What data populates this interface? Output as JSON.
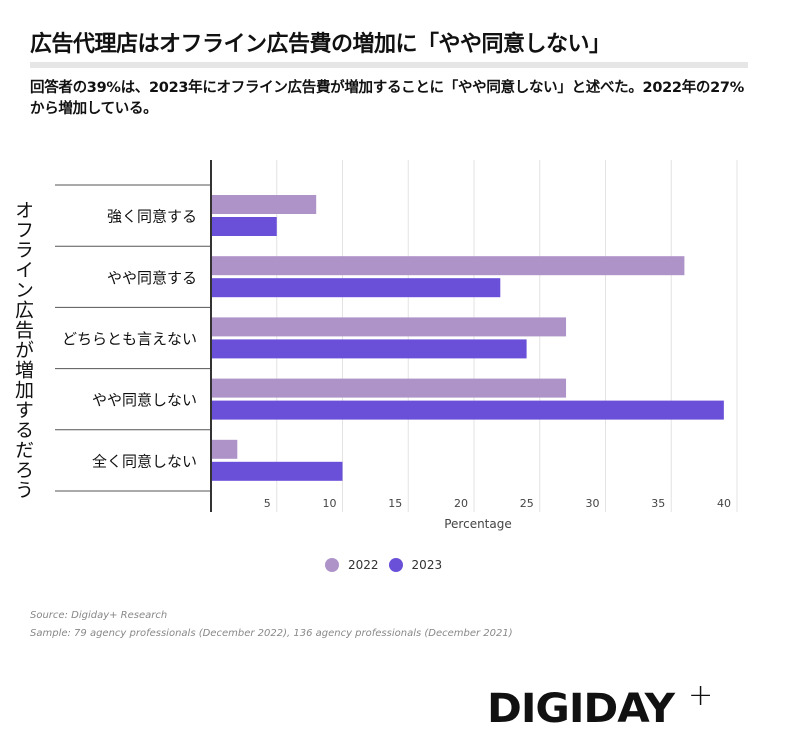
{
  "title": "広告代理店はオフライン広告費の増加に「やや同意しない」",
  "subtitle": "回答者の39%は、2023年にオフライン広告費が増加することに「やや同意しない」と述べた。2022年の27%から増加している。",
  "source": "Source: Digiday+ Research",
  "sample": "Sample: 79 agency professionals (December 2022), 136 agency professionals (December 2021)",
  "logo": "DIGIDAY+",
  "chart_data": {
    "type": "bar",
    "orientation": "horizontal",
    "categories": [
      "強く同意する",
      "やや同意する",
      "どちらとも言えない",
      "やや同意しない",
      "全く同意しない"
    ],
    "series": [
      {
        "name": "2022",
        "color": "#ae93c8",
        "values": [
          8,
          36,
          27,
          27,
          2
        ]
      },
      {
        "name": "2023",
        "color": "#6a50d8",
        "values": [
          5,
          22,
          24,
          39,
          10
        ]
      }
    ],
    "xlabel": "Percentage",
    "ylabel": "オフライン広告が増加するだろう",
    "xlim": [
      0,
      40
    ],
    "xticks": [
      5,
      10,
      15,
      20,
      25,
      30,
      35,
      40
    ],
    "grid": true,
    "legend": "bottom"
  }
}
